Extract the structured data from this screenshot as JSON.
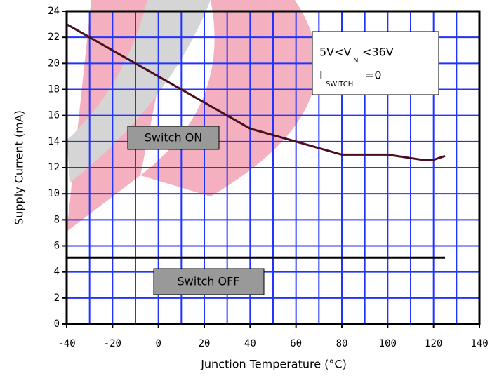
{
  "chart_data": {
    "type": "line",
    "x_label": "Junction Temperature (°C)",
    "y_label": "Supply Current (mA)",
    "xlim": [
      -40,
      140
    ],
    "xticks": [
      -40,
      -20,
      0,
      20,
      40,
      60,
      80,
      100,
      120,
      140
    ],
    "x_minor_grid": [
      -30,
      -10,
      10,
      30,
      50,
      70,
      90,
      110,
      130
    ],
    "ylim": [
      0,
      24
    ],
    "yticks": [
      0,
      2,
      4,
      6,
      8,
      10,
      12,
      14,
      16,
      18,
      20,
      22,
      24
    ],
    "grid": true,
    "grid_color": "#2233ff",
    "series": [
      {
        "name": "Switch ON",
        "color": "#4a0f1e",
        "x": [
          -40,
          -20,
          0,
          20,
          40,
          60,
          80,
          100,
          115,
          120,
          125
        ],
        "values": [
          23,
          21,
          19,
          17,
          15,
          14,
          13,
          13,
          12.6,
          12.6,
          12.9
        ]
      },
      {
        "name": "Switch OFF",
        "color": "#000000",
        "x": [
          -40,
          125
        ],
        "values": [
          5.1,
          5.1
        ]
      }
    ],
    "conditions": {
      "line1": [
        "5V<V",
        "IN",
        "<36V"
      ],
      "line2": [
        "I",
        "SWITCH",
        "=0"
      ]
    }
  }
}
